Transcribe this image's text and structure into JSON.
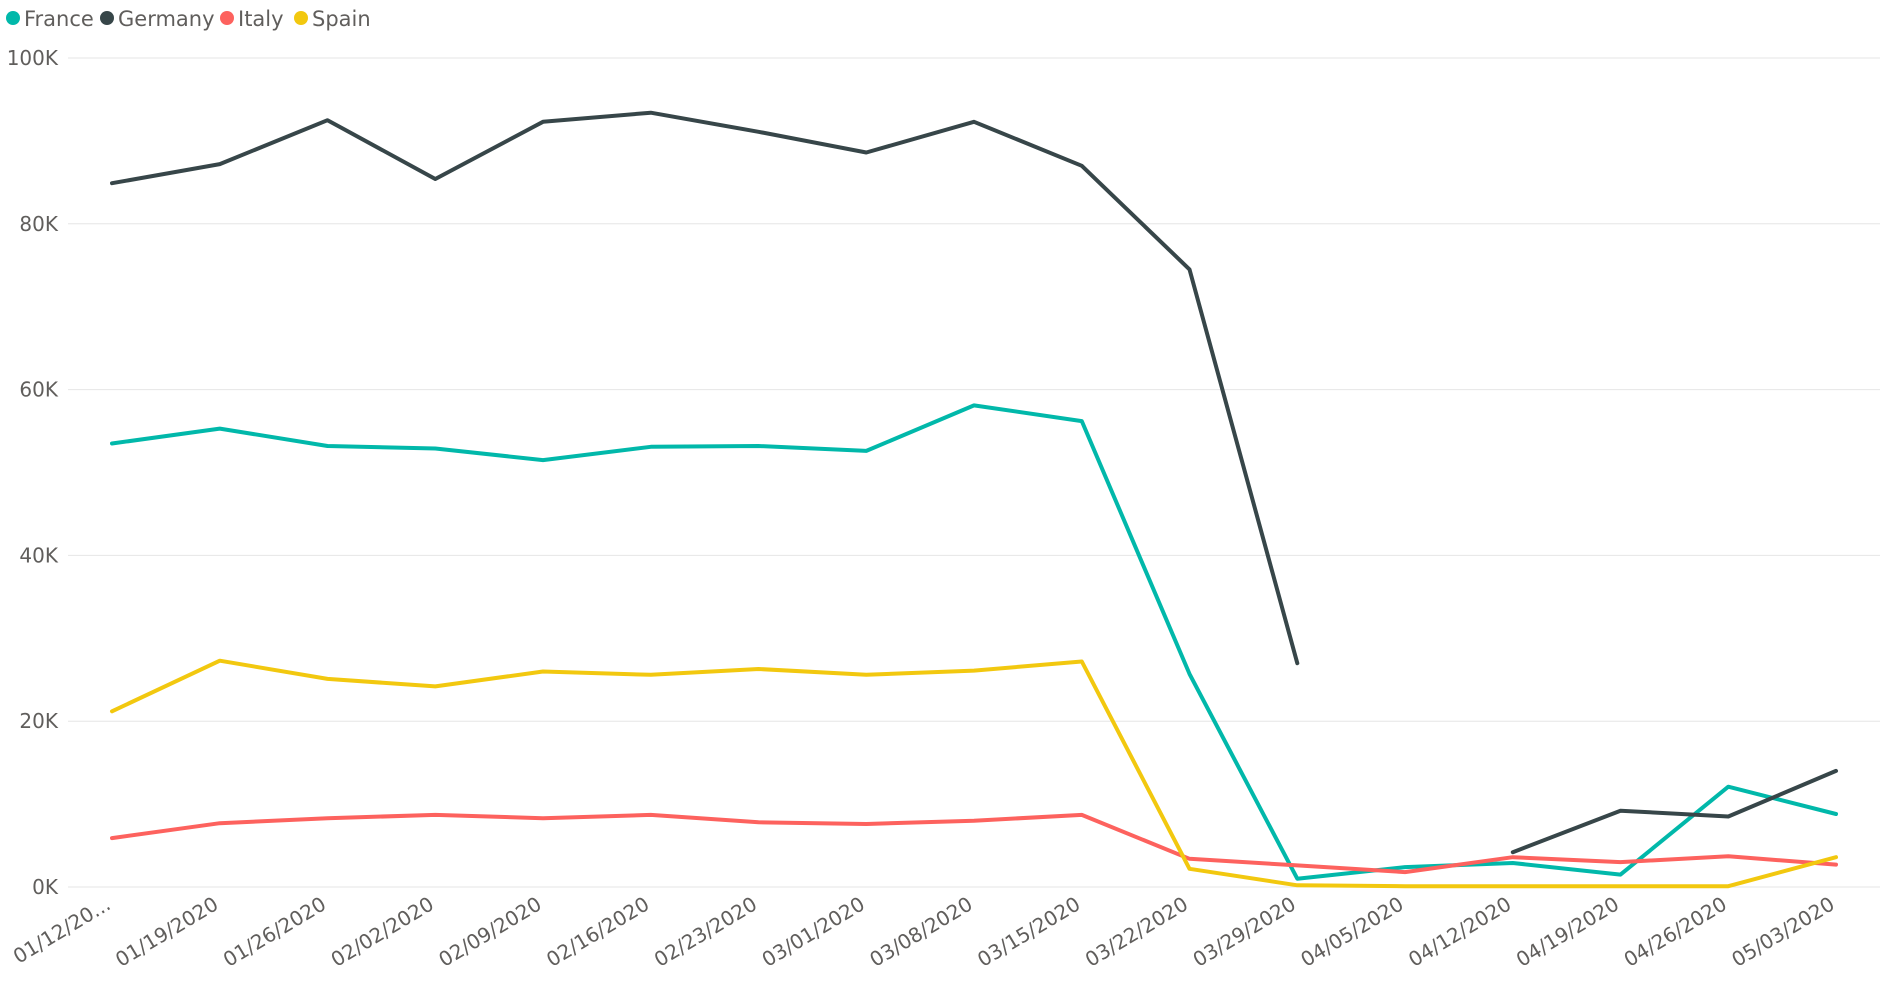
{
  "chart_data": {
    "type": "line",
    "title": "",
    "xlabel": "",
    "ylabel": "",
    "ylim": [
      0,
      100000
    ],
    "grid": true,
    "legend_position": "top-left",
    "yticks": [
      0,
      20000,
      40000,
      60000,
      80000,
      100000
    ],
    "ytick_labels": [
      "0K",
      "20K",
      "40K",
      "60K",
      "80K",
      "100K"
    ],
    "categories": [
      "01/12/20...",
      "01/19/2020",
      "01/26/2020",
      "02/02/2020",
      "02/09/2020",
      "02/16/2020",
      "02/23/2020",
      "03/01/2020",
      "03/08/2020",
      "03/15/2020",
      "03/22/2020",
      "03/29/2020",
      "04/05/2020",
      "04/12/2020",
      "04/19/2020",
      "04/26/2020",
      "05/03/2020"
    ],
    "series": [
      {
        "name": "France",
        "color": "#01B8AA",
        "values": [
          53500,
          55300,
          53200,
          52900,
          51500,
          53100,
          53200,
          52600,
          58100,
          56200,
          25700,
          1000,
          2400,
          2900,
          1500,
          12100,
          8800
        ]
      },
      {
        "name": "Germany",
        "color": "#374649",
        "values": [
          84900,
          87200,
          92500,
          85400,
          92300,
          93400,
          91100,
          88600,
          92300,
          87000,
          74500,
          27000,
          null,
          4200,
          9200,
          8500,
          14000
        ]
      },
      {
        "name": "Italy",
        "color": "#FD625E",
        "values": [
          5900,
          7700,
          8300,
          8700,
          8300,
          8700,
          7800,
          7600,
          8000,
          8700,
          3400,
          2600,
          1800,
          3600,
          3000,
          3700,
          2700
        ]
      },
      {
        "name": "Spain",
        "color": "#F2C80F",
        "values": [
          21200,
          27300,
          25100,
          24200,
          26000,
          25600,
          26300,
          25600,
          26100,
          27200,
          2200,
          200,
          100,
          100,
          100,
          100,
          3600
        ]
      }
    ]
  }
}
